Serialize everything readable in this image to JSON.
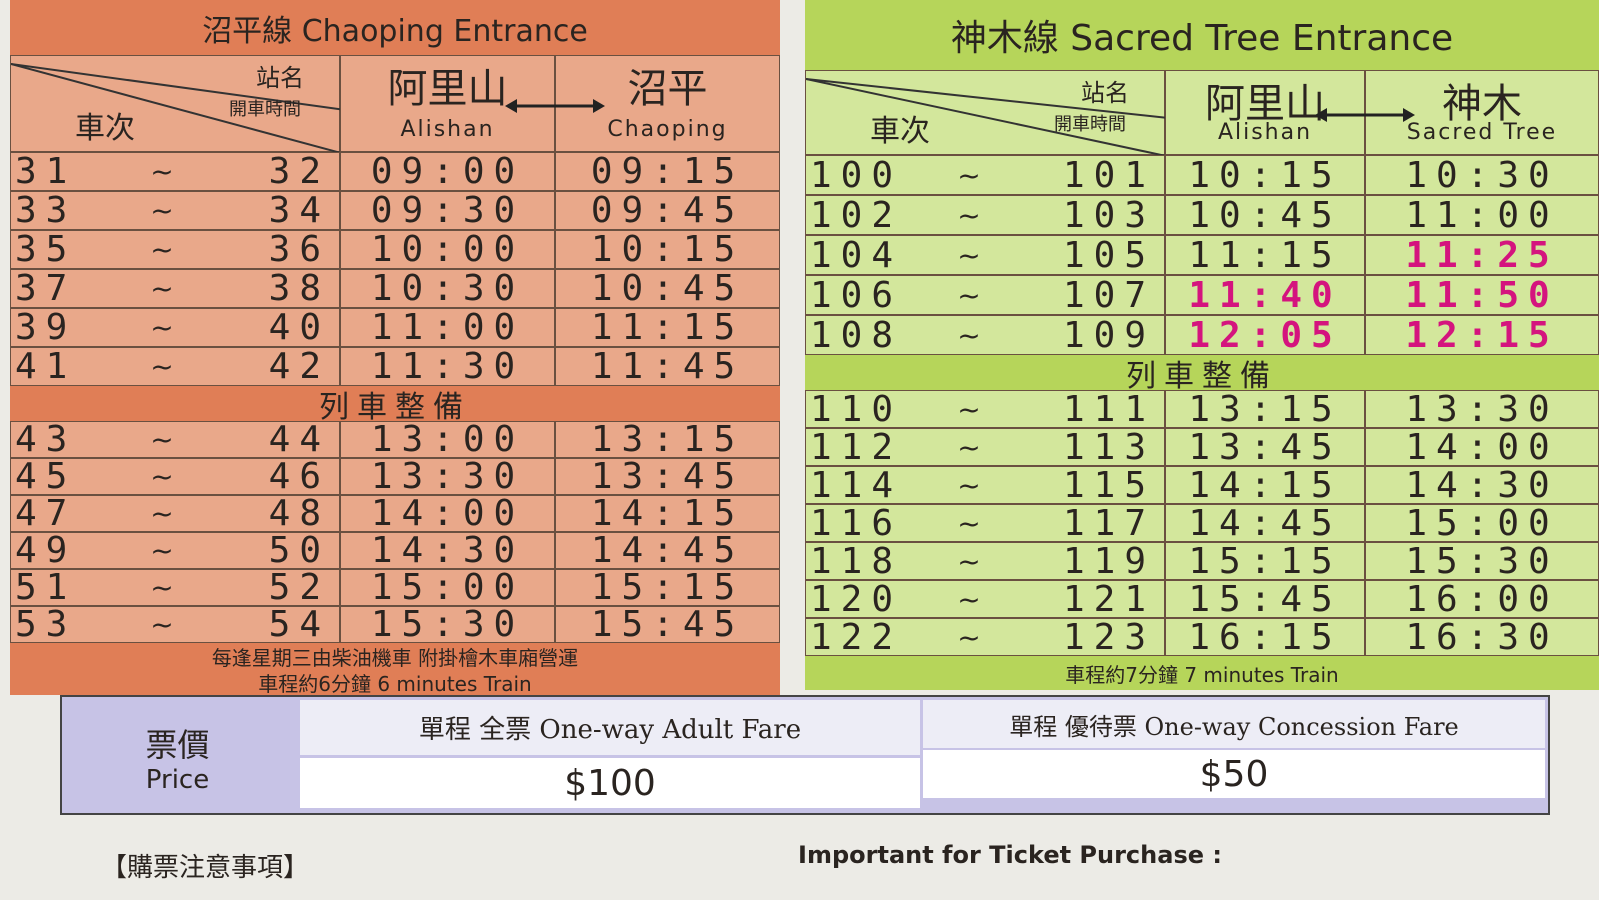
{
  "left": {
    "title": "沼平線 Chaoping Entrance",
    "header": {
      "station": "站名",
      "departure": "開車時間",
      "train_no": "車次",
      "from": "阿里山",
      "from_en": "Alishan",
      "to": "沼平",
      "to_en": "Chaoping"
    },
    "range_separator": "~",
    "rows_am": [
      [
        "31",
        "32",
        "09:00",
        "09:15"
      ],
      [
        "33",
        "34",
        "09:30",
        "09:45"
      ],
      [
        "35",
        "36",
        "10:00",
        "10:15"
      ],
      [
        "37",
        "38",
        "10:30",
        "10:45"
      ],
      [
        "39",
        "40",
        "11:00",
        "11:15"
      ],
      [
        "41",
        "42",
        "11:30",
        "11:45"
      ]
    ],
    "break": "列車整備",
    "rows_pm": [
      [
        "43",
        "44",
        "13:00",
        "13:15"
      ],
      [
        "45",
        "46",
        "13:30",
        "13:45"
      ],
      [
        "47",
        "48",
        "14:00",
        "14:15"
      ],
      [
        "49",
        "50",
        "14:30",
        "14:45"
      ],
      [
        "51",
        "52",
        "15:00",
        "15:15"
      ],
      [
        "53",
        "54",
        "15:30",
        "15:45"
      ]
    ],
    "notes": [
      "每逢星期三由柴油機車 附掛檜木車廂營運",
      "車程約6分鐘 6 minutes Train"
    ]
  },
  "right": {
    "title": "神木線 Sacred Tree Entrance",
    "header": {
      "station": "站名",
      "departure": "開車時間",
      "train_no": "車次",
      "from": "阿里山",
      "from_en": "Alishan",
      "to": "神木",
      "to_en": "Sacred Tree"
    },
    "range_separator": "~",
    "rows_am": [
      [
        "100",
        "101",
        "10:15",
        "10:30"
      ],
      [
        "102",
        "103",
        "10:45",
        "11:00"
      ],
      [
        "104",
        "105",
        "11:15",
        "11:25"
      ],
      [
        "106",
        "107",
        "11:40",
        "11:50"
      ],
      [
        "108",
        "109",
        "12:05",
        "12:15"
      ]
    ],
    "highlighted_cells": [
      [
        2,
        3
      ],
      [
        3,
        2
      ],
      [
        3,
        3
      ],
      [
        4,
        2
      ],
      [
        4,
        3
      ]
    ],
    "break": "列車整備",
    "rows_pm": [
      [
        "110",
        "111",
        "13:15",
        "13:30"
      ],
      [
        "112",
        "113",
        "13:45",
        "14:00"
      ],
      [
        "114",
        "115",
        "14:15",
        "14:30"
      ],
      [
        "116",
        "117",
        "14:45",
        "15:00"
      ],
      [
        "118",
        "119",
        "15:15",
        "15:30"
      ],
      [
        "120",
        "121",
        "15:45",
        "16:00"
      ],
      [
        "122",
        "123",
        "16:15",
        "16:30"
      ]
    ],
    "notes": [
      "車程約7分鐘 7 minutes Train"
    ]
  },
  "price": {
    "label": "票價",
    "label_en": "Price",
    "adult": "單程 全票 One-way Adult Fare",
    "adult_price": "$100",
    "concession": "單程 優待票 One-way Concession Fare",
    "concession_price": "$50"
  },
  "footer": {
    "notice_zh": "【購票注意事項】",
    "notice_en": "Important for Ticket Purchase :"
  }
}
